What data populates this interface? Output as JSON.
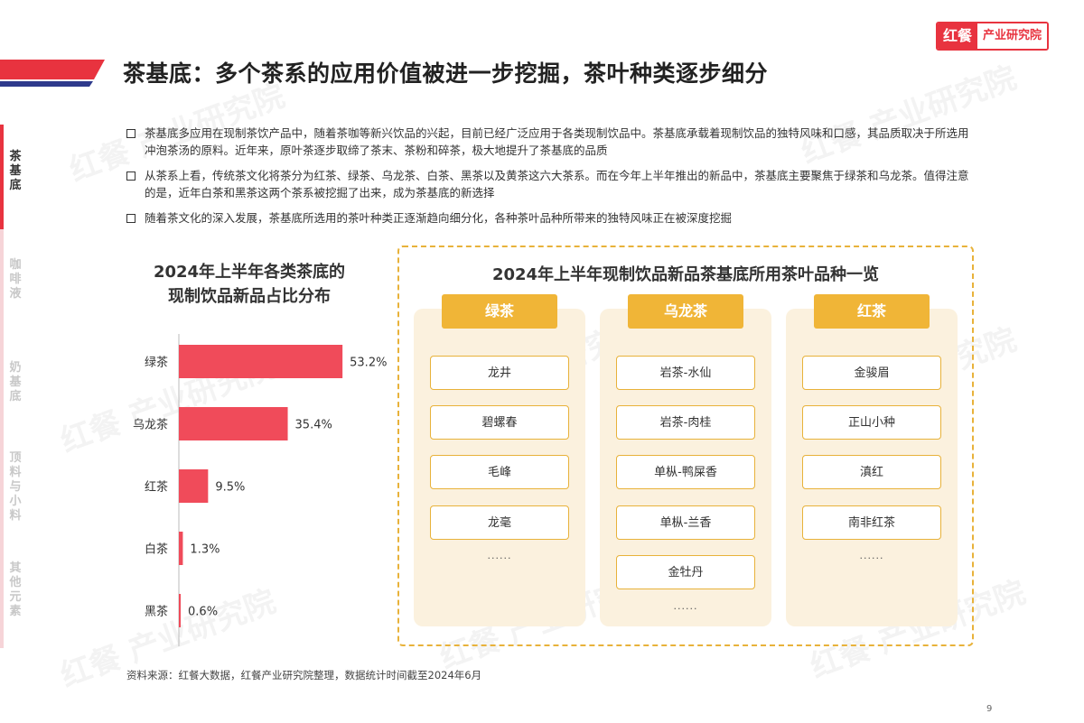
{
  "header": {
    "title": "茶基底：多个茶系的应用价值被进一步挖掘，茶叶种类逐步细分",
    "logo_brand": "红餐",
    "logo_org": "产业研究院",
    "accent_color": "#e8333f",
    "accent_secondary": "#2e3a8c"
  },
  "watermark": "红餐 产业研究院",
  "sidebar": {
    "items": [
      {
        "label": "茶基底",
        "active": true
      },
      {
        "label": "咖啡液",
        "active": false
      },
      {
        "label": "奶基底",
        "active": false
      },
      {
        "label": "顶料与小料",
        "active": false
      },
      {
        "label": "其他元素",
        "active": false
      }
    ]
  },
  "bullets": [
    "茶基底多应用在现制茶饮产品中，随着茶咖等新兴饮品的兴起，目前已经广泛应用于各类现制饮品中。茶基底承载着现制饮品的独特风味和口感，其品质取决于所选用冲泡茶汤的原料。近年来，原叶茶逐步取缔了茶末、茶粉和碎茶，极大地提升了茶基底的品质",
    "从茶系上看，传统茶文化将茶分为红茶、绿茶、乌龙茶、白茶、黑茶以及黄茶这六大茶系。而在今年上半年推出的新品中，茶基底主要聚焦于绿茶和乌龙茶。值得注意的是，近年白茶和黑茶这两个茶系被挖掘了出来，成为茶基底的新选择",
    "随着茶文化的深入发展，茶基底所选用的茶叶种类正逐渐趋向细分化，各种茶叶品种所带来的独特风味正在被深度挖掘"
  ],
  "chart_data": {
    "type": "bar",
    "orientation": "horizontal",
    "title_line1": "2024年上半年各类茶底的",
    "title_line2": "现制饮品新品占比分布",
    "categories": [
      "绿茶",
      "乌龙茶",
      "红茶",
      "白茶",
      "黑茶"
    ],
    "values": [
      53.2,
      35.4,
      9.5,
      1.3,
      0.6
    ],
    "value_labels": [
      "53.2%",
      "35.4%",
      "9.5%",
      "1.3%",
      "0.6%"
    ],
    "bar_color": "#f04b5a",
    "xlim": [
      0,
      60
    ]
  },
  "panel": {
    "title": "2024年上半年现制饮品新品茶基底所用茶叶品种一览",
    "columns": [
      {
        "header": "绿茶",
        "items": [
          "龙井",
          "碧螺春",
          "毛峰",
          "龙毫"
        ],
        "more": "······"
      },
      {
        "header": "乌龙茶",
        "items": [
          "岩茶-水仙",
          "岩茶-肉桂",
          "单枞-鸭屎香",
          "单枞-兰香",
          "金牡丹"
        ],
        "more": "······"
      },
      {
        "header": "红茶",
        "items": [
          "金骏眉",
          "正山小种",
          "滇红",
          "南非红茶"
        ],
        "more": "······"
      }
    ]
  },
  "footer": {
    "source": "资料来源：红餐大数据，红餐产业研究院整理，数据统计时间截至2024年6月",
    "page": "9"
  }
}
